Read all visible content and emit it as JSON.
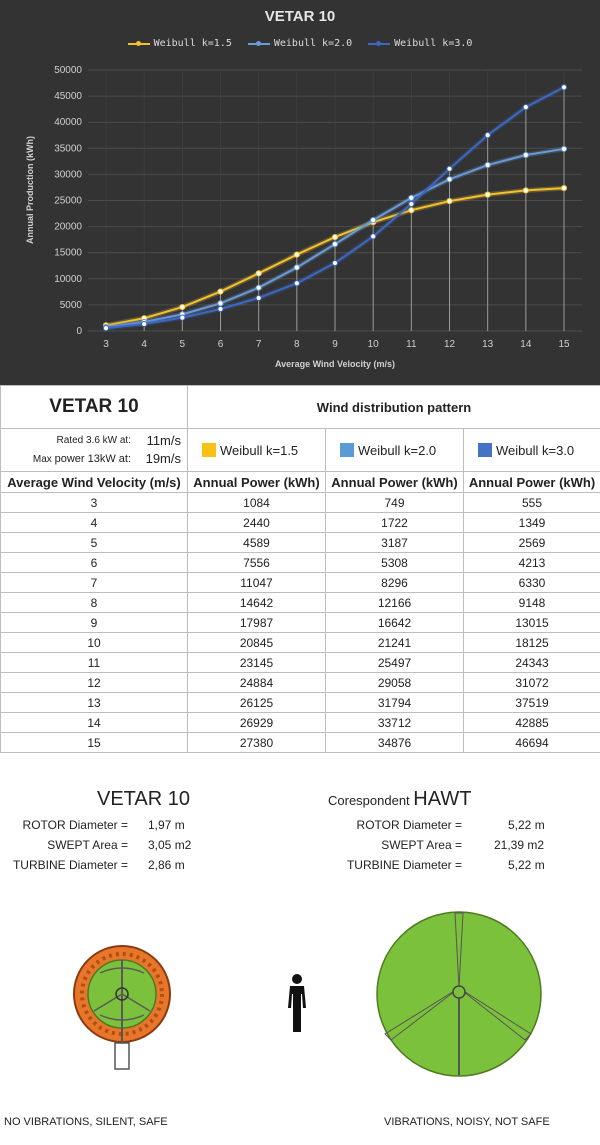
{
  "chart_data": {
    "type": "line",
    "title": "VETAR 10",
    "xlabel": "Average Wind Velocity (m/s)",
    "ylabel": "Annual Production (kWh)",
    "x": [
      3,
      4,
      5,
      6,
      7,
      8,
      9,
      10,
      11,
      12,
      13,
      14,
      15
    ],
    "ylim": [
      0,
      50000
    ],
    "yticks": [
      0,
      5000,
      10000,
      15000,
      20000,
      25000,
      30000,
      35000,
      40000,
      45000,
      50000
    ],
    "grid": true,
    "legend_position": "top",
    "series": [
      {
        "name": "Weibull k=1.5",
        "color": "#f2c12e",
        "values": [
          1084,
          2440,
          4589,
          7556,
          11047,
          14642,
          17987,
          20845,
          23145,
          24884,
          26125,
          26929,
          27380
        ]
      },
      {
        "name": "Weibull k=2.0",
        "color": "#6a9bd8",
        "values": [
          749,
          1722,
          3187,
          5308,
          8296,
          12166,
          16642,
          21241,
          25497,
          29058,
          31794,
          33712,
          34876
        ]
      },
      {
        "name": "Weibull k=3.0",
        "color": "#3d68c2",
        "values": [
          555,
          1349,
          2569,
          4213,
          6330,
          9148,
          13015,
          18125,
          24343,
          31072,
          37519,
          42885,
          46694
        ]
      }
    ]
  },
  "table": {
    "title": "VETAR 10",
    "dist_header": "Wind distribution pattern",
    "rated_label": "Rated 3.6 kW at:",
    "rated_value": "11m/s",
    "max_label_small": "Max ",
    "max_label_big": "power 13kW at:",
    "max_value": "19m/s",
    "series_labels": [
      "Weibull k=1.5",
      "Weibull k=2.0",
      "Weibull k=3.0"
    ],
    "series_colors": [
      "#f7c213",
      "#5b9bd5",
      "#4472c4"
    ],
    "col_headers": [
      "Average Wind Velocity (m/s)",
      "Annual Power (kWh)",
      "Annual Power (kWh)",
      "Annual Power (kWh)"
    ],
    "rows": [
      [
        "3",
        "1084",
        "749",
        "555"
      ],
      [
        "4",
        "2440",
        "1722",
        "1349"
      ],
      [
        "5",
        "4589",
        "3187",
        "2569"
      ],
      [
        "6",
        "7556",
        "5308",
        "4213"
      ],
      [
        "7",
        "11047",
        "8296",
        "6330"
      ],
      [
        "8",
        "14642",
        "12166",
        "9148"
      ],
      [
        "9",
        "17987",
        "16642",
        "13015"
      ],
      [
        "10",
        "20845",
        "21241",
        "18125"
      ],
      [
        "11",
        "23145",
        "25497",
        "24343"
      ],
      [
        "12",
        "24884",
        "29058",
        "31072"
      ],
      [
        "13",
        "26125",
        "31794",
        "37519"
      ],
      [
        "14",
        "26929",
        "33712",
        "42885"
      ],
      [
        "15",
        "27380",
        "34876",
        "46694"
      ]
    ]
  },
  "compare": {
    "left": {
      "title": "VETAR 10",
      "rows": [
        {
          "label": "ROTOR Diameter =",
          "value": "1,97 m"
        },
        {
          "label": "SWEPT Area =",
          "value": "3,05 m2"
        },
        {
          "label": "TURBINE Diameter =",
          "value": "2,86 m"
        }
      ],
      "note": "NO VIBRATIONS, SILENT, SAFE"
    },
    "right": {
      "title_small": "Corespondent ",
      "title_big": "HAWT",
      "rows": [
        {
          "label": "ROTOR Diameter =",
          "value": "5,22 m"
        },
        {
          "label": "SWEPT Area =",
          "value": "21,39 m2"
        },
        {
          "label": "TURBINE Diameter =",
          "value": "5,22 m"
        }
      ],
      "note": "VIBRATIONS, NOISY, NOT SAFE"
    }
  },
  "icons": {
    "vawt": "vertical-axis-turbine-icon",
    "person": "person-icon",
    "hawt": "horizontal-axis-turbine-icon"
  }
}
